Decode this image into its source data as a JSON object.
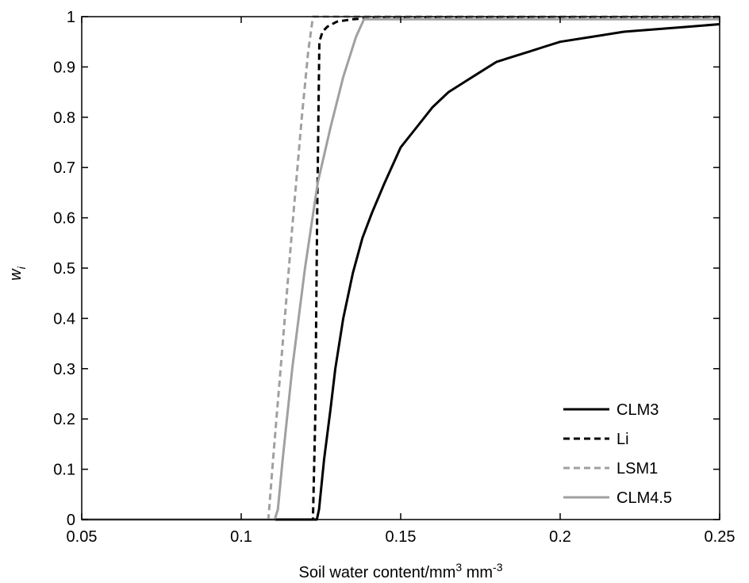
{
  "chart_data": {
    "type": "line",
    "xlabel": "Soil water content/mm",
    "xlabel_sup1": "3",
    "xlabel_mid": " mm",
    "xlabel_sup2": "-3",
    "ylabel": "w",
    "ylabel_sub": "i",
    "xlim": [
      0.05,
      0.25
    ],
    "ylim": [
      0,
      1
    ],
    "xticks": [
      "0.05",
      "0.1",
      "0.15",
      "0.2",
      "0.25"
    ],
    "yticks": [
      "0",
      "0.1",
      "0.2",
      "0.3",
      "0.4",
      "0.5",
      "0.6",
      "0.7",
      "0.8",
      "0.9",
      "1"
    ],
    "grid": false,
    "legend_position": "bottom-right",
    "series": [
      {
        "name": "CLM3",
        "color": "#000000",
        "dash": "solid",
        "x": [
          0.05,
          0.1237,
          0.1244,
          0.126,
          0.128,
          0.1295,
          0.132,
          0.135,
          0.138,
          0.141,
          0.145,
          0.15,
          0.155,
          0.16,
          0.165,
          0.17,
          0.175,
          0.18,
          0.185,
          0.19,
          0.195,
          0.2,
          0.21,
          0.22,
          0.23,
          0.24,
          0.25
        ],
        "y": [
          0,
          0,
          0.02,
          0.12,
          0.22,
          0.3,
          0.4,
          0.49,
          0.56,
          0.61,
          0.67,
          0.74,
          0.78,
          0.82,
          0.85,
          0.87,
          0.89,
          0.91,
          0.92,
          0.93,
          0.94,
          0.95,
          0.96,
          0.97,
          0.975,
          0.98,
          0.985
        ]
      },
      {
        "name": "Li",
        "color": "#000000",
        "dash": "dashed",
        "x": [
          0.05,
          0.1225,
          0.1232,
          0.1238,
          0.1245,
          0.1255,
          0.127,
          0.13,
          0.135,
          0.14,
          0.15,
          0.16,
          0.25
        ],
        "y": [
          0,
          0,
          0.2,
          0.6,
          0.95,
          0.97,
          0.98,
          0.99,
          0.995,
          0.997,
          0.998,
          0.999,
          0.999
        ]
      },
      {
        "name": "LSM1",
        "color": "#a0a0a0",
        "dash": "dashed",
        "x": [
          0.05,
          0.1085,
          0.11,
          0.113,
          0.116,
          0.119,
          0.121,
          0.1225,
          0.25
        ],
        "y": [
          0,
          0,
          0.12,
          0.35,
          0.58,
          0.8,
          0.93,
          1.0,
          1.0
        ]
      },
      {
        "name": "CLM4.5",
        "color": "#a0a0a0",
        "dash": "solid",
        "x": [
          0.05,
          0.1105,
          0.1115,
          0.113,
          0.116,
          0.12,
          0.124,
          0.128,
          0.132,
          0.136,
          0.1385,
          0.25
        ],
        "y": [
          0,
          0,
          0.02,
          0.12,
          0.3,
          0.5,
          0.67,
          0.78,
          0.88,
          0.96,
          0.995,
          0.995
        ]
      }
    ]
  }
}
